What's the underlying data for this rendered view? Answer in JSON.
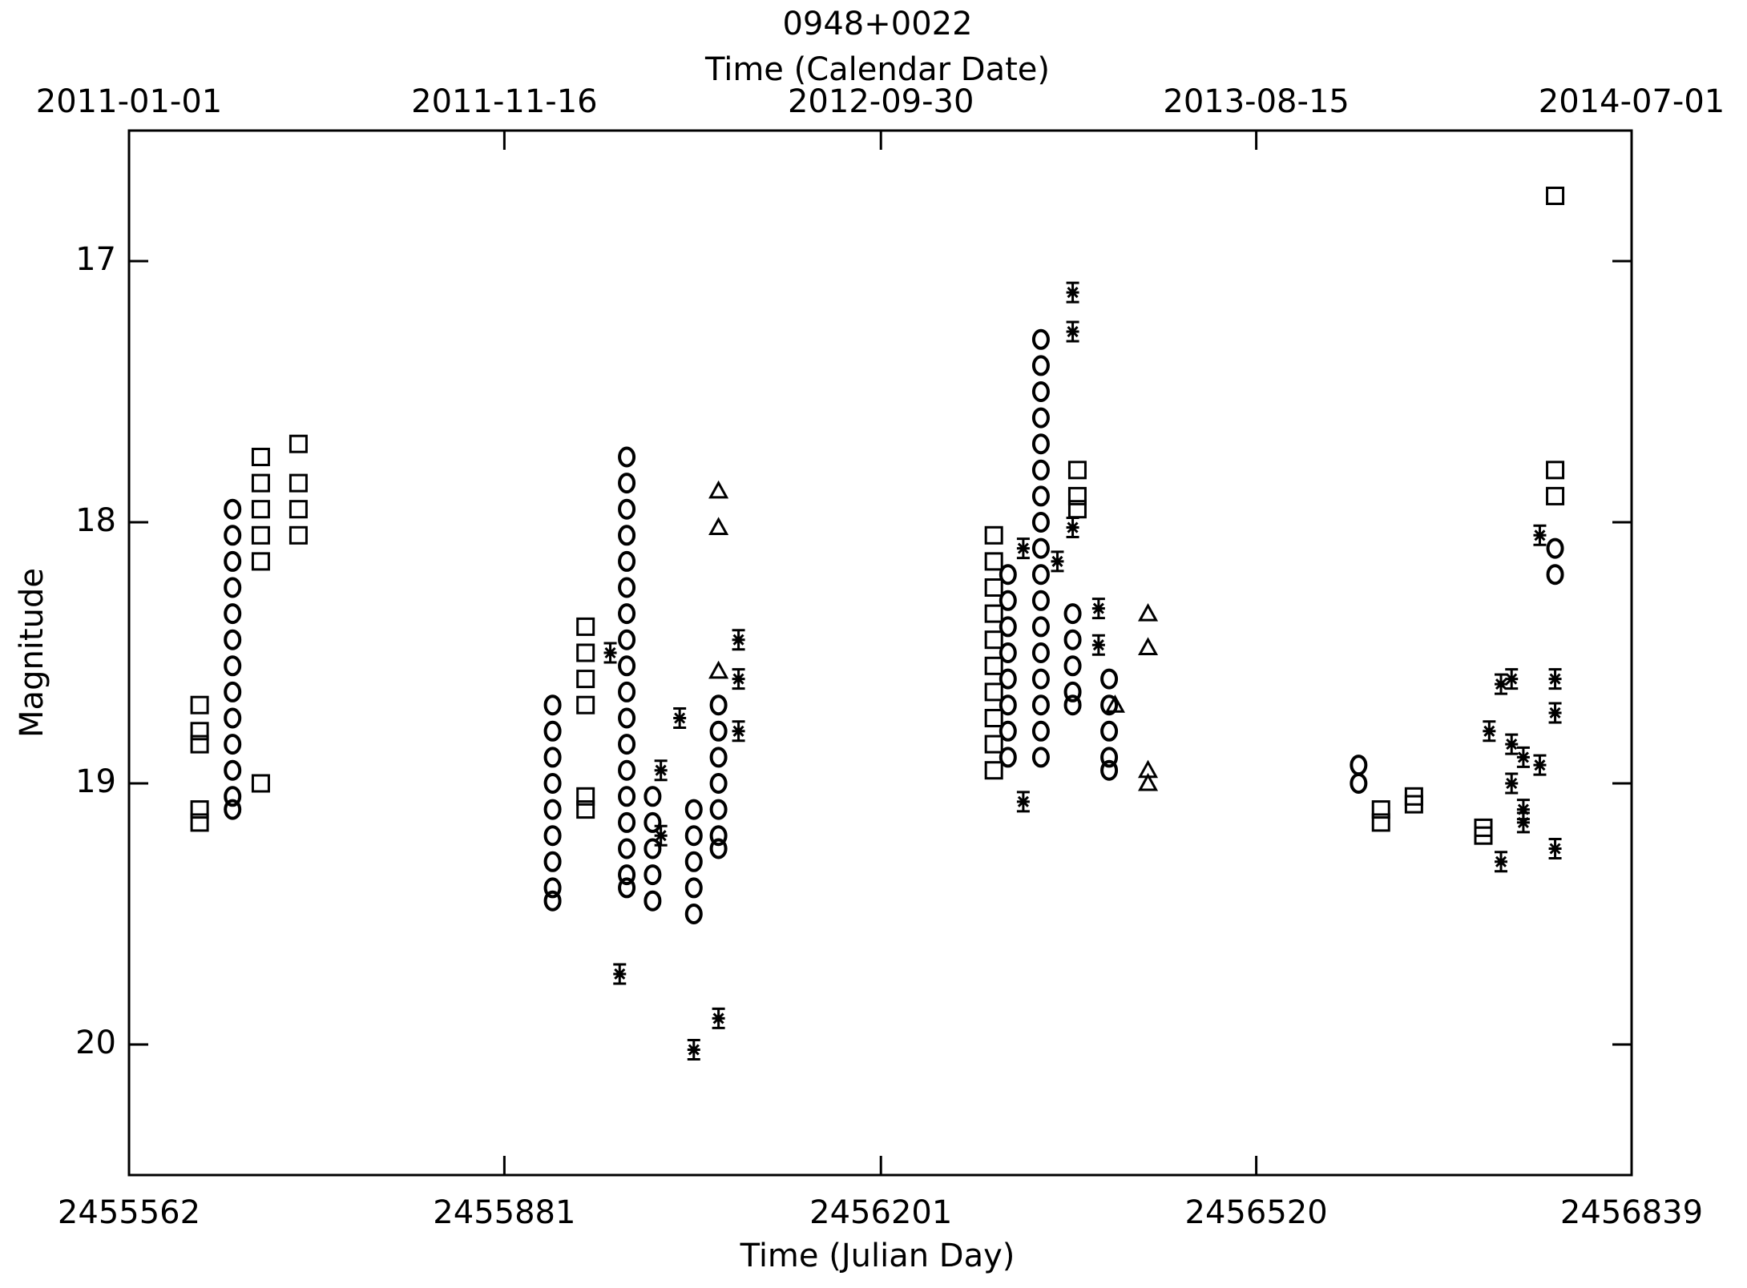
{
  "chart_data": {
    "type": "scatter",
    "title": "0948+0022",
    "x_label": "Time (Julian Day)",
    "x2_label": "Time (Calendar Date)",
    "y_label": "Magnitude",
    "xlim": [
      2455562,
      2456839
    ],
    "xticks": [
      2455562,
      2455881,
      2456201,
      2456520,
      2456839
    ],
    "x2ticks": [
      {
        "value": 2455562,
        "label": "2011-01-01"
      },
      {
        "value": 2455881,
        "label": "2011-11-16"
      },
      {
        "value": 2456201,
        "label": "2012-09-30"
      },
      {
        "value": 2456520,
        "label": "2013-08-15"
      },
      {
        "value": 2456839,
        "label": "2014-07-01"
      }
    ],
    "ylim": [
      20.5,
      16.5
    ],
    "yticks": [
      17,
      18,
      19,
      20
    ],
    "series": [
      {
        "marker": "circle",
        "color": "#000000",
        "x": [
          2455650,
          2455650,
          2455650,
          2455650,
          2455650,
          2455650,
          2455650,
          2455650,
          2455650,
          2455650,
          2455650,
          2455650,
          2455650,
          2455922,
          2455922,
          2455922,
          2455922,
          2455922,
          2455922,
          2455922,
          2455922,
          2455922,
          2455985,
          2455985,
          2455985,
          2455985,
          2455985,
          2455985,
          2455985,
          2455985,
          2455985,
          2455985,
          2455985,
          2455985,
          2455985,
          2455985,
          2455985,
          2455985,
          2455985,
          2455985,
          2456007,
          2456007,
          2456007,
          2456007,
          2456007,
          2456042,
          2456042,
          2456042,
          2456042,
          2456042,
          2456063,
          2456063,
          2456063,
          2456063,
          2456063,
          2456063,
          2456063,
          2456309,
          2456309,
          2456309,
          2456309,
          2456309,
          2456309,
          2456309,
          2456309,
          2456337,
          2456337,
          2456337,
          2456337,
          2456337,
          2456337,
          2456337,
          2456337,
          2456337,
          2456337,
          2456337,
          2456337,
          2456337,
          2456337,
          2456337,
          2456337,
          2456337,
          2456364,
          2456364,
          2456364,
          2456364,
          2456364,
          2456395,
          2456395,
          2456395,
          2456395,
          2456395,
          2456607,
          2456607,
          2456774,
          2456774
        ],
        "values": [
          17.95,
          18.05,
          18.15,
          18.25,
          18.35,
          18.45,
          18.55,
          18.65,
          18.75,
          18.85,
          18.95,
          19.05,
          19.1,
          18.7,
          18.8,
          18.9,
          19.0,
          19.1,
          19.2,
          19.3,
          19.4,
          19.45,
          17.75,
          17.85,
          17.95,
          18.05,
          18.15,
          18.25,
          18.35,
          18.45,
          18.55,
          18.65,
          18.75,
          18.85,
          18.95,
          19.05,
          19.15,
          19.25,
          19.35,
          19.4,
          19.05,
          19.15,
          19.25,
          19.35,
          19.45,
          19.1,
          19.2,
          19.3,
          19.4,
          19.5,
          18.7,
          18.8,
          18.9,
          19.0,
          19.1,
          19.2,
          19.25,
          18.2,
          18.3,
          18.4,
          18.5,
          18.6,
          18.7,
          18.8,
          18.9,
          17.3,
          17.4,
          17.5,
          17.6,
          17.7,
          17.8,
          17.9,
          18.0,
          18.1,
          18.2,
          18.3,
          18.4,
          18.5,
          18.6,
          18.7,
          18.8,
          18.9,
          18.35,
          18.45,
          18.55,
          18.65,
          18.7,
          18.6,
          18.7,
          18.8,
          18.9,
          18.95,
          18.93,
          19.0,
          18.1,
          18.2
        ]
      },
      {
        "marker": "square",
        "color": "#000000",
        "x": [
          2455622,
          2455622,
          2455622,
          2455622,
          2455622,
          2455674,
          2455674,
          2455674,
          2455674,
          2455674,
          2455674,
          2455706,
          2455706,
          2455706,
          2455706,
          2455950,
          2455950,
          2455950,
          2455950,
          2455950,
          2455950,
          2456297,
          2456297,
          2456297,
          2456297,
          2456297,
          2456297,
          2456297,
          2456297,
          2456297,
          2456297,
          2456368,
          2456368,
          2456368,
          2456626,
          2456626,
          2456654,
          2456654,
          2456713,
          2456713,
          2456774,
          2456774,
          2456774
        ],
        "values": [
          18.7,
          18.8,
          18.85,
          19.1,
          19.15,
          17.75,
          17.85,
          17.95,
          18.05,
          18.15,
          19.0,
          17.7,
          17.85,
          17.95,
          18.05,
          18.4,
          18.5,
          18.6,
          18.7,
          19.05,
          19.1,
          18.05,
          18.15,
          18.25,
          18.35,
          18.45,
          18.55,
          18.65,
          18.75,
          18.85,
          18.95,
          17.8,
          17.9,
          17.95,
          19.1,
          19.15,
          19.05,
          19.08,
          19.17,
          19.2,
          16.75,
          17.8,
          17.9
        ]
      },
      {
        "marker": "asterisk",
        "color": "#000000",
        "x": [
          2455971,
          2455979,
          2456014,
          2456014,
          2456030,
          2456042,
          2456063,
          2456080,
          2456080,
          2456080,
          2456322,
          2456322,
          2456351,
          2456364,
          2456364,
          2456364,
          2456386,
          2456386,
          2456718,
          2456728,
          2456728,
          2456737,
          2456737,
          2456737,
          2456747,
          2456747,
          2456747,
          2456761,
          2456761,
          2456774,
          2456774,
          2456774
        ],
        "values": [
          18.5,
          19.73,
          18.95,
          19.2,
          18.75,
          20.02,
          19.9,
          18.45,
          18.6,
          18.8,
          18.1,
          19.07,
          18.15,
          17.12,
          17.27,
          18.02,
          18.33,
          18.47,
          18.8,
          18.62,
          19.3,
          18.6,
          18.85,
          19.0,
          18.9,
          19.1,
          19.15,
          18.05,
          18.93,
          18.6,
          18.73,
          19.25
        ]
      },
      {
        "marker": "triangle",
        "color": "#000000",
        "x": [
          2456063,
          2456063,
          2456063,
          2456400,
          2456428,
          2456428,
          2456428,
          2456428
        ],
        "values": [
          17.88,
          18.02,
          18.57,
          18.7,
          18.35,
          18.48,
          18.95,
          19.0
        ]
      }
    ]
  }
}
